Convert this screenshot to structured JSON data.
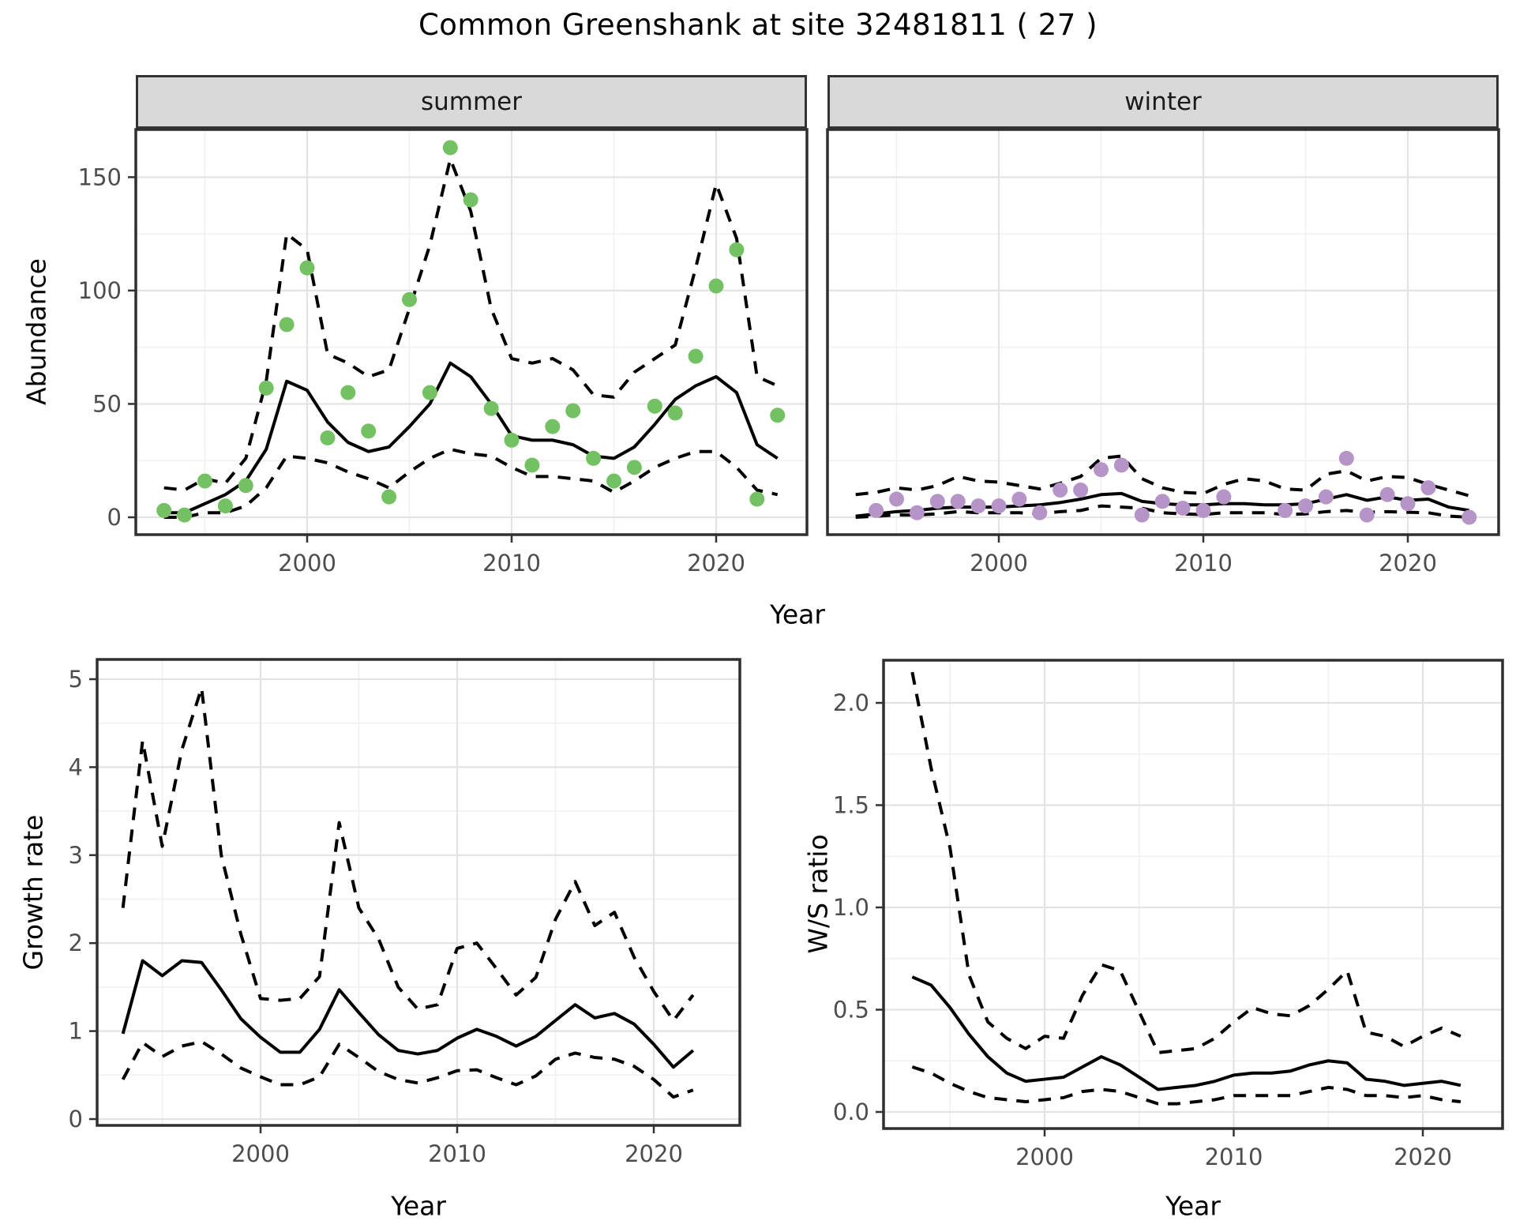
{
  "title": "Common Greenshank at site 32481811 ( 27 )",
  "colors": {
    "summer_point": "#74c163",
    "winter_point": "#b694c8",
    "line": "#000000",
    "strip_bg": "#d9d9d9",
    "grid_major": "#e3e3e3",
    "grid_minor": "#f0f0f0",
    "panel_border": "#2f2f2f",
    "tick": "#333333",
    "tick_label": "#4d4d4d"
  },
  "chart_data": [
    {
      "id": "summer",
      "type": "scatter",
      "facet_label": "summer",
      "xlabel": "Year",
      "ylabel": "Abundance",
      "xlim": [
        1991.6,
        2024.4
      ],
      "ylim": [
        -7.7,
        171
      ],
      "xticks": [
        2000,
        2010,
        2020
      ],
      "xtick_labels": [
        "2000",
        "2010",
        "2020"
      ],
      "xminor": [
        1995,
        2005,
        2015
      ],
      "yticks": [
        0,
        50,
        100,
        150
      ],
      "ytick_labels": [
        "0",
        "50",
        "100",
        "150"
      ],
      "yminor": [
        25,
        75,
        125
      ],
      "point_color": "#74c163",
      "years": [
        1993,
        1994,
        1995,
        1996,
        1997,
        1998,
        1999,
        2000,
        2001,
        2002,
        2003,
        2004,
        2005,
        2006,
        2007,
        2008,
        2009,
        2010,
        2011,
        2012,
        2013,
        2014,
        2015,
        2016,
        2017,
        2018,
        2019,
        2020,
        2021,
        2022,
        2023
      ],
      "points": [
        3,
        1,
        16,
        5,
        14,
        57,
        85,
        110,
        35,
        55,
        38,
        9,
        96,
        55,
        163,
        140,
        48,
        34,
        23,
        40,
        47,
        26,
        16,
        22,
        49,
        46,
        71,
        102,
        118,
        8,
        45
      ],
      "fit": [
        2,
        2,
        6,
        10,
        16,
        30,
        60,
        56,
        42,
        33,
        29,
        31,
        40,
        50,
        68,
        62,
        50,
        36,
        34,
        34,
        32,
        27,
        26,
        31,
        41,
        52,
        58,
        62,
        55,
        32,
        26
      ],
      "ci_upper": [
        13,
        12,
        17,
        15,
        26,
        60,
        125,
        118,
        72,
        68,
        62,
        65,
        92,
        120,
        158,
        135,
        92,
        70,
        68,
        70,
        65,
        54,
        53,
        64,
        70,
        76,
        110,
        147,
        123,
        62,
        58
      ],
      "ci_lower": [
        0,
        0,
        2,
        2,
        5,
        13,
        27,
        26,
        24,
        20,
        17,
        13,
        20,
        26,
        30,
        28,
        27,
        22,
        18,
        18,
        17,
        16,
        11,
        16,
        22,
        26,
        29,
        29,
        22,
        12,
        10
      ]
    },
    {
      "id": "winter",
      "type": "scatter",
      "facet_label": "winter",
      "xlabel": "Year",
      "ylabel": "Abundance",
      "xlim": [
        1991.6,
        2024.4
      ],
      "ylim": [
        -7.7,
        171
      ],
      "xticks": [
        2000,
        2010,
        2020
      ],
      "xtick_labels": [
        "2000",
        "2010",
        "2020"
      ],
      "xminor": [
        1995,
        2005,
        2015
      ],
      "yticks": [
        0,
        50,
        100,
        150
      ],
      "ytick_labels": [
        "0",
        "50",
        "100",
        "150"
      ],
      "yminor": [
        25,
        75,
        125
      ],
      "point_color": "#b694c8",
      "years": [
        1993,
        1994,
        1995,
        1996,
        1997,
        1998,
        1999,
        2000,
        2001,
        2002,
        2003,
        2004,
        2005,
        2006,
        2007,
        2008,
        2009,
        2010,
        2011,
        2012,
        2013,
        2014,
        2015,
        2016,
        2017,
        2018,
        2019,
        2020,
        2021,
        2022,
        2023
      ],
      "points": [
        null,
        3,
        8,
        2,
        7,
        7,
        5,
        5,
        8,
        2,
        12,
        12,
        21,
        23,
        1,
        7,
        4,
        3,
        9,
        null,
        null,
        3,
        5,
        9,
        26,
        1,
        10,
        6,
        13,
        null,
        0
      ],
      "fit": [
        0.5,
        1.5,
        2.5,
        3,
        4,
        4.5,
        4.5,
        4.5,
        5,
        5.5,
        6.5,
        8,
        10,
        10.5,
        7,
        6,
        5.5,
        5.5,
        6,
        6,
        5.5,
        5.5,
        6,
        8,
        10,
        7.5,
        9,
        7.5,
        8,
        4.5,
        3
      ],
      "ci_upper": [
        10,
        11,
        13,
        12,
        14,
        18,
        16,
        15.5,
        14,
        12.5,
        15,
        18,
        26,
        27,
        17,
        13,
        11,
        10.5,
        14.5,
        17,
        16,
        12.5,
        12,
        19,
        20.5,
        16,
        18,
        17.5,
        14.5,
        12,
        9.5
      ],
      "ci_lower": [
        0,
        0.5,
        1,
        1,
        1.5,
        2.5,
        2,
        2,
        2,
        1.5,
        2.5,
        3,
        5,
        4.5,
        4,
        2,
        1.5,
        1.2,
        2,
        2,
        2,
        1.2,
        1.5,
        2.5,
        3,
        2.2,
        2.5,
        2.2,
        2,
        0.5,
        0
      ]
    },
    {
      "id": "growth",
      "type": "line",
      "facet_label": "",
      "xlabel": "Year",
      "ylabel": "Growth rate",
      "xlim": [
        1991.7,
        2024.4
      ],
      "ylim": [
        -0.07,
        5.22
      ],
      "xticks": [
        2000,
        2010,
        2020
      ],
      "xtick_labels": [
        "2000",
        "2010",
        "2020"
      ],
      "xminor": [
        1995,
        2005,
        2015
      ],
      "yticks": [
        0,
        1,
        2,
        3,
        4,
        5
      ],
      "ytick_labels": [
        "0",
        "1",
        "2",
        "3",
        "4",
        "5"
      ],
      "yminor": [
        0.5,
        1.5,
        2.5,
        3.5,
        4.5
      ],
      "point_color": null,
      "years": [
        1993,
        1994,
        1995,
        1996,
        1997,
        1998,
        1999,
        2000,
        2001,
        2002,
        2003,
        2004,
        2005,
        2006,
        2007,
        2008,
        2009,
        2010,
        2011,
        2012,
        2013,
        2014,
        2015,
        2016,
        2017,
        2018,
        2019,
        2020,
        2021,
        2022
      ],
      "points": null,
      "fit": [
        0.97,
        1.8,
        1.63,
        1.8,
        1.78,
        1.47,
        1.14,
        0.93,
        0.76,
        0.76,
        1.02,
        1.47,
        1.21,
        0.96,
        0.78,
        0.74,
        0.78,
        0.92,
        1.02,
        0.94,
        0.83,
        0.94,
        1.12,
        1.3,
        1.15,
        1.2,
        1.08,
        0.85,
        0.59,
        0.78
      ],
      "ci_upper": [
        2.4,
        4.3,
        3.1,
        4.2,
        4.9,
        3.0,
        2.1,
        1.37,
        1.35,
        1.37,
        1.62,
        3.37,
        2.4,
        2.05,
        1.5,
        1.25,
        1.3,
        1.94,
        2.0,
        1.71,
        1.41,
        1.61,
        2.27,
        2.7,
        2.2,
        2.35,
        1.84,
        1.45,
        1.12,
        1.41
      ],
      "ci_lower": [
        0.45,
        0.87,
        0.71,
        0.83,
        0.88,
        0.74,
        0.58,
        0.48,
        0.39,
        0.39,
        0.48,
        0.85,
        0.7,
        0.54,
        0.45,
        0.41,
        0.47,
        0.55,
        0.56,
        0.47,
        0.39,
        0.49,
        0.68,
        0.75,
        0.7,
        0.68,
        0.6,
        0.45,
        0.25,
        0.33
      ]
    },
    {
      "id": "ws",
      "type": "line",
      "facet_label": "",
      "xlabel": "Year",
      "ylabel": "W/S ratio",
      "xlim": [
        1991.5,
        2024.2
      ],
      "ylim": [
        -0.08,
        2.21
      ],
      "xticks": [
        2000,
        2010,
        2020
      ],
      "xtick_labels": [
        "2000",
        "2010",
        "2020"
      ],
      "xminor": [
        1995,
        2005,
        2015
      ],
      "yticks": [
        0.0,
        0.5,
        1.0,
        1.5,
        2.0
      ],
      "ytick_labels": [
        "0.0",
        "0.5",
        "1.0",
        "1.5",
        "2.0"
      ],
      "yminor": [
        0.25,
        0.75,
        1.25,
        1.75
      ],
      "point_color": null,
      "years": [
        1993,
        1994,
        1995,
        1996,
        1997,
        1998,
        1999,
        2000,
        2001,
        2002,
        2003,
        2004,
        2005,
        2006,
        2007,
        2008,
        2009,
        2010,
        2011,
        2012,
        2013,
        2014,
        2015,
        2016,
        2017,
        2018,
        2019,
        2020,
        2021,
        2022
      ],
      "points": null,
      "fit": [
        0.66,
        0.62,
        0.51,
        0.38,
        0.27,
        0.19,
        0.15,
        0.16,
        0.17,
        0.22,
        0.27,
        0.23,
        0.17,
        0.11,
        0.12,
        0.13,
        0.15,
        0.18,
        0.19,
        0.19,
        0.2,
        0.23,
        0.25,
        0.24,
        0.16,
        0.15,
        0.13,
        0.14,
        0.15,
        0.13
      ],
      "ci_upper": [
        2.15,
        1.68,
        1.29,
        0.67,
        0.44,
        0.36,
        0.31,
        0.37,
        0.36,
        0.57,
        0.72,
        0.69,
        0.49,
        0.29,
        0.3,
        0.31,
        0.36,
        0.44,
        0.51,
        0.48,
        0.47,
        0.52,
        0.6,
        0.69,
        0.39,
        0.37,
        0.32,
        0.37,
        0.41,
        0.37
      ],
      "ci_lower": [
        0.22,
        0.19,
        0.14,
        0.1,
        0.07,
        0.06,
        0.05,
        0.06,
        0.07,
        0.1,
        0.11,
        0.1,
        0.07,
        0.04,
        0.04,
        0.05,
        0.06,
        0.08,
        0.08,
        0.08,
        0.08,
        0.1,
        0.12,
        0.11,
        0.08,
        0.08,
        0.07,
        0.08,
        0.06,
        0.05
      ]
    }
  ]
}
